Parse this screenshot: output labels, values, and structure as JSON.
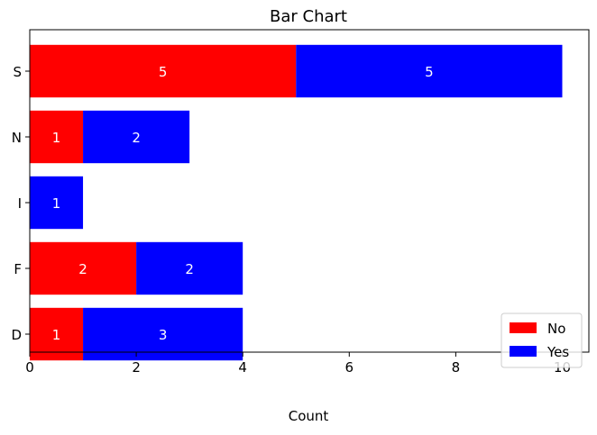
{
  "chart_data": {
    "type": "bar",
    "orientation": "horizontal",
    "stacked": true,
    "title": "Bar Chart",
    "xlabel": "Count",
    "ylabel": "",
    "categories": [
      "D",
      "F",
      "I",
      "N",
      "S"
    ],
    "series": [
      {
        "name": "No",
        "color": "#ff0000",
        "values": [
          1,
          2,
          0,
          1,
          5
        ]
      },
      {
        "name": "Yes",
        "color": "#0000ff",
        "values": [
          3,
          2,
          1,
          2,
          5
        ]
      }
    ],
    "xlim": [
      0,
      10.5
    ],
    "xticks": [
      "0",
      "2",
      "4",
      "6",
      "8",
      "10"
    ],
    "grid": false,
    "legend_position": "lower-right",
    "data_label_color": "#ffffff"
  }
}
